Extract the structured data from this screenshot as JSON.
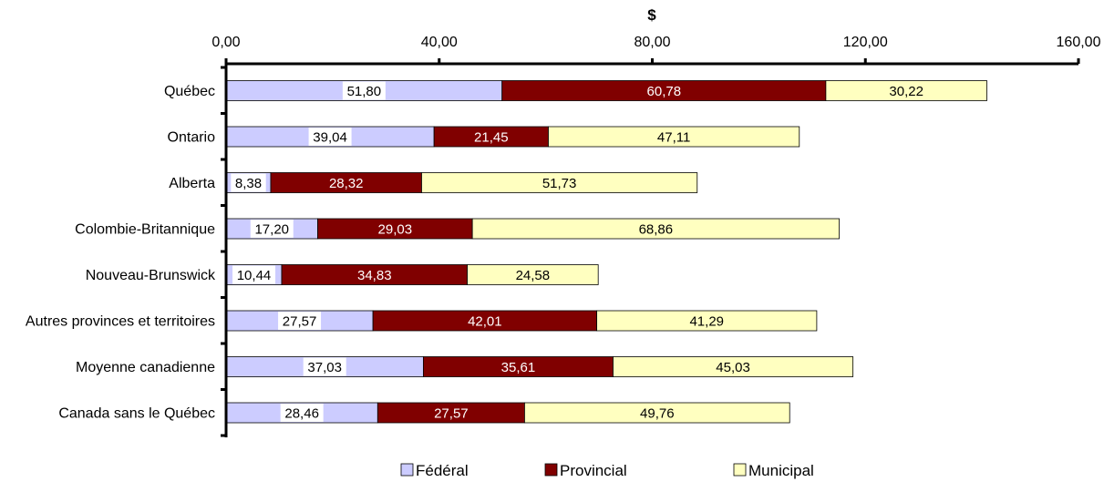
{
  "chart_data": {
    "type": "bar",
    "orientation": "horizontal",
    "stacked": true,
    "xlabel": "$",
    "xlim": [
      0,
      160
    ],
    "x_ticks": [
      "0,00",
      "40,00",
      "80,00",
      "120,00",
      "160,00"
    ],
    "x_axis_position": "top",
    "legend_position": "bottom",
    "grid": false,
    "categories": [
      "Québec",
      "Ontario",
      "Alberta",
      "Colombie-Britannique",
      "Nouveau-Brunswick",
      "Autres provinces et territoires",
      "Moyenne canadienne",
      "Canada sans le Québec"
    ],
    "series": [
      {
        "name": "Fédéral",
        "color": "#ccccff",
        "values": [
          51.8,
          39.04,
          8.38,
          17.2,
          10.44,
          27.57,
          37.03,
          28.46
        ],
        "labels": [
          "51,80",
          "39,04",
          "8,38",
          "17,20",
          "10,44",
          "27,57",
          "37,03",
          "28,46"
        ]
      },
      {
        "name": "Provincial",
        "color": "#800000",
        "values": [
          60.78,
          21.45,
          28.32,
          29.03,
          34.83,
          42.01,
          35.61,
          27.57
        ],
        "labels": [
          "60,78",
          "21,45",
          "28,32",
          "29,03",
          "34,83",
          "42,01",
          "35,61",
          "27,57"
        ]
      },
      {
        "name": "Municipal",
        "color": "#ffffc0",
        "values": [
          30.22,
          47.11,
          51.73,
          68.86,
          24.58,
          41.29,
          45.03,
          49.76
        ],
        "labels": [
          "30,22",
          "47,11",
          "51,73",
          "68,86",
          "24,58",
          "41,29",
          "45,03",
          "49,76"
        ]
      }
    ]
  }
}
